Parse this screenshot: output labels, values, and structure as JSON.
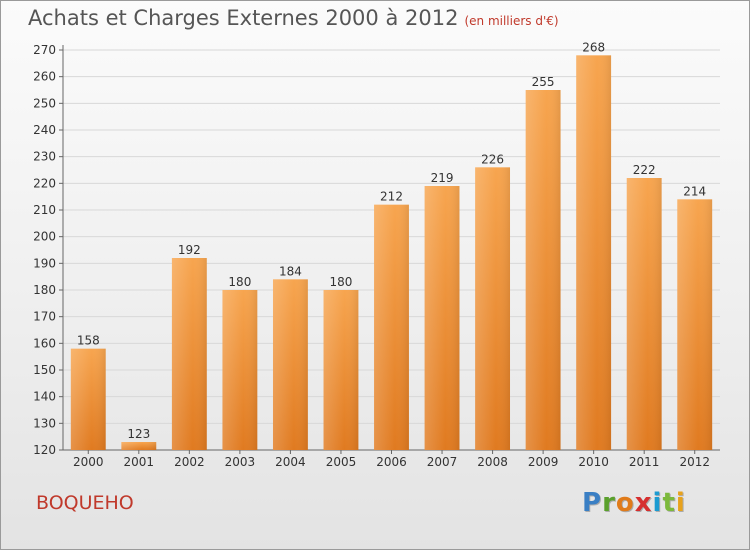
{
  "title": "Achats et Charges Externes 2000 à 2012",
  "unit": "(en milliers d'€)",
  "location": "BOQUEHO",
  "brand": {
    "letters": [
      "P",
      "r",
      "o",
      "x",
      "i",
      "t",
      "i"
    ],
    "colors": [
      "#3a7fc4",
      "#5aa02c",
      "#e07b1a",
      "#d62f2f",
      "#1b9bd1",
      "#7cb93b",
      "#e8a21c"
    ]
  },
  "colors": {
    "bar_top": "#f7a54f",
    "bar_bottom": "#e07a20",
    "grid": "#d8d8d8"
  },
  "chart_data": {
    "type": "bar",
    "categories": [
      "2000",
      "2001",
      "2002",
      "2003",
      "2004",
      "2005",
      "2006",
      "2007",
      "2008",
      "2009",
      "2010",
      "2011",
      "2012"
    ],
    "values": [
      158,
      123,
      192,
      180,
      184,
      180,
      212,
      219,
      226,
      255,
      268,
      222,
      214
    ],
    "ylim": [
      120,
      270
    ],
    "yticks": [
      120,
      130,
      140,
      150,
      160,
      170,
      180,
      190,
      200,
      210,
      220,
      230,
      240,
      250,
      260,
      270
    ],
    "grid": true,
    "xlabel": "",
    "ylabel": ""
  }
}
